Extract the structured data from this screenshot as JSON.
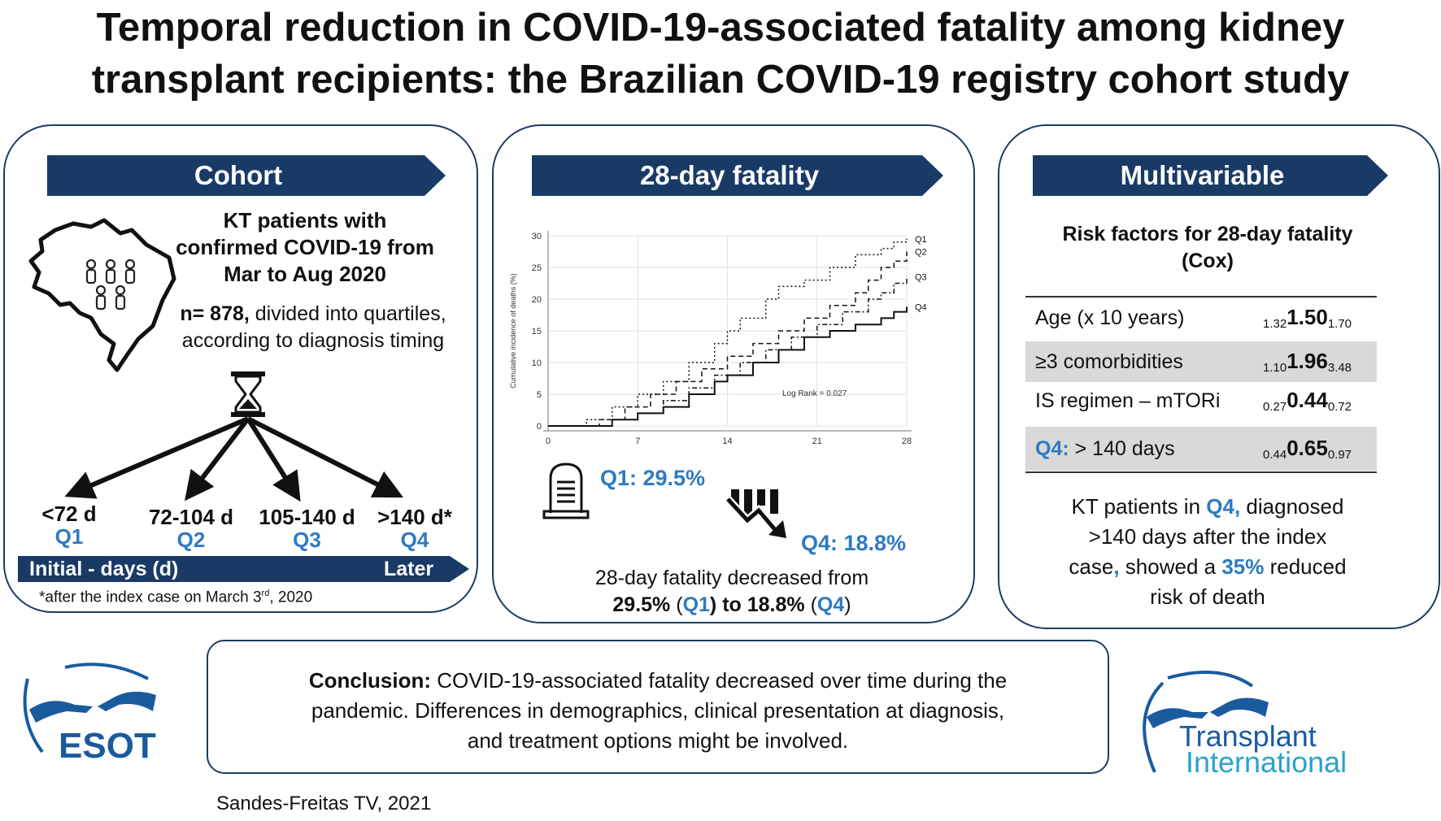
{
  "title_line1": "Temporal reduction in COVID-19-associated fatality among kidney",
  "title_line2": "transplant recipients: the Brazilian COVID-19 registry cohort study",
  "cohort": {
    "banner": "Cohort",
    "desc_line1": "KT patients with",
    "desc_line2": "confirmed COVID-19 from",
    "desc_line3": "Mar to Aug 2020",
    "n_bold": "n= 878,",
    "n_rest": " divided into quartiles,",
    "n_line2": "according to diagnosis timing",
    "quartiles": [
      {
        "days": "<72 d",
        "q": "Q1"
      },
      {
        "days": "72-104 d",
        "q": "Q2"
      },
      {
        "days": "105-140 d",
        "q": "Q3"
      },
      {
        "days": ">140 d*",
        "q": "Q4"
      }
    ],
    "timeline_left": "Initial  - days (d)",
    "timeline_right": "Later",
    "footnote_a": "*after the index case on March 3",
    "footnote_sup": "rd",
    "footnote_b": ", 2020"
  },
  "fatality": {
    "banner": "28-day fatality",
    "q1_result": "Q1: 29.5%",
    "q4_result": "Q4: 18.8%",
    "summary_line1": "28-day fatality decreased from",
    "summary_a": "29.5%",
    "summary_b": " (",
    "summary_q1": "Q1",
    "summary_c": ") to ",
    "summary_d": "18.8%",
    "summary_e": " (",
    "summary_q4": "Q4",
    "summary_f": ")"
  },
  "chart_data": {
    "type": "line",
    "ylabel": "Cumulative incidence of deaths (%)",
    "xlabel": "",
    "xlim": [
      0,
      28
    ],
    "ylim": [
      0,
      30
    ],
    "x_ticks": [
      0,
      7,
      14,
      21,
      28
    ],
    "y_ticks": [
      0,
      5,
      10,
      15,
      20,
      25,
      30
    ],
    "annotation": "Log Rank = 0.027",
    "series": [
      {
        "name": "Q1",
        "style": "dotted",
        "x": [
          0,
          3,
          5,
          7,
          9,
          11,
          13,
          14,
          15,
          17,
          18,
          20,
          22,
          24,
          26,
          27,
          28
        ],
        "y": [
          0,
          1,
          3,
          5,
          7,
          10,
          13,
          15,
          17,
          20,
          22,
          23,
          25,
          27,
          28,
          29,
          29.5
        ]
      },
      {
        "name": "Q2",
        "style": "dashed",
        "x": [
          0,
          4,
          6,
          8,
          10,
          12,
          14,
          16,
          18,
          20,
          22,
          24,
          25,
          26,
          27,
          28
        ],
        "y": [
          0,
          1,
          3,
          5,
          7,
          9,
          11,
          13,
          15,
          17,
          19,
          21,
          23,
          25,
          26,
          27.5
        ]
      },
      {
        "name": "Q3",
        "style": "dash-dot",
        "x": [
          0,
          5,
          7,
          9,
          11,
          13,
          15,
          17,
          19,
          21,
          23,
          25,
          26,
          27,
          28
        ],
        "y": [
          0,
          1,
          2,
          4,
          6,
          8,
          10,
          12,
          14,
          16,
          18,
          20,
          21,
          22.5,
          23.5
        ]
      },
      {
        "name": "Q4",
        "style": "solid",
        "x": [
          0,
          5,
          7,
          9,
          11,
          13,
          14,
          16,
          18,
          20,
          22,
          24,
          26,
          27,
          28
        ],
        "y": [
          0,
          1,
          2,
          3,
          5,
          7,
          8,
          10,
          12,
          14,
          15,
          16,
          17,
          18,
          18.8
        ]
      }
    ]
  },
  "multivariable": {
    "banner": "Multivariable",
    "subtitle_line1": "Risk factors for 28-day fatality",
    "subtitle_line2": "(Cox)",
    "rows": [
      {
        "label": "Age (x 10 years)",
        "lo": "1.32",
        "est": "1.50",
        "hi": "1.70"
      },
      {
        "label": "≥3 comorbidities",
        "lo": "1.10",
        "est": "1.96",
        "hi": "3.48"
      },
      {
        "label": "IS regimen – mTORi",
        "lo": "0.27",
        "est": "0.44",
        "hi": "0.72"
      },
      {
        "label_q": "Q4:",
        "label": " > 140 days",
        "lo": "0.44",
        "est": "0.65",
        "hi": "0.97"
      }
    ],
    "note_a": "KT patients in ",
    "note_q4": "Q4,",
    "note_b": " diagnosed",
    "note_line2": ">140 days after the index",
    "note_c": "case",
    "note_comma": ",",
    "note_d": " showed a ",
    "note_pct": "35%",
    "note_e": " reduced",
    "note_line4": "risk of death"
  },
  "conclusion": {
    "label": "Conclusion:",
    "text1": " COVID-19-associated fatality decreased over time during  the",
    "text2": "pandemic.  Differences in demographics,  clinical presentation at diagnosis,",
    "text3": "and treatment  options might  be involved."
  },
  "logos": {
    "esot": "ESOT",
    "ti_line1": "Transplant",
    "ti_line2": "International"
  },
  "citation": "Sandes-Freitas TV, 2021"
}
